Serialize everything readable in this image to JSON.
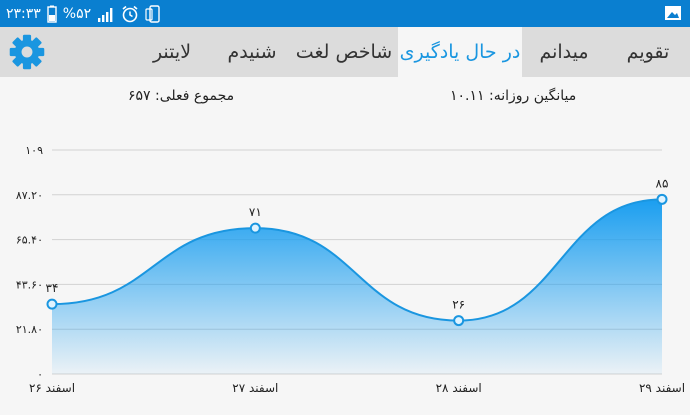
{
  "status": {
    "time": "۲۳:۳۳",
    "battery": "%۵۲"
  },
  "tabs": [
    {
      "label": "تقویم"
    },
    {
      "label": "میدانم"
    },
    {
      "label": "در حال یادگیری"
    },
    {
      "label": "شاخص لغت"
    },
    {
      "label": "شنیدم"
    },
    {
      "label": "لایتنر"
    }
  ],
  "summary": {
    "daily_avg": "میانگین روزانه: ۱۰.۱۱",
    "current_total": "مجموع فعلی: ۶۵۷"
  },
  "colors": {
    "accent": "#1a96e0",
    "status_bar": "#0a7fd0",
    "tab_bar": "#dcdcdc"
  },
  "chart_data": {
    "type": "area",
    "categories": [
      "۲۶ اسفند",
      "۲۷ اسفند",
      "۲۸ اسفند",
      "۲۹ اسفند"
    ],
    "values": [
      34,
      71,
      26,
      85
    ],
    "value_labels": [
      "۳۴",
      "۷۱",
      "۲۶",
      "۸۵"
    ],
    "y_ticks": [
      0,
      21.8,
      43.6,
      65.4,
      87.2,
      109
    ],
    "y_tick_labels": [
      "۰",
      "۲۱.۸۰",
      "۴۳.۶۰",
      "۶۵.۴۰",
      "۸۷.۲۰",
      "۱۰۹"
    ],
    "ylim": [
      0,
      109
    ],
    "grid": true
  }
}
